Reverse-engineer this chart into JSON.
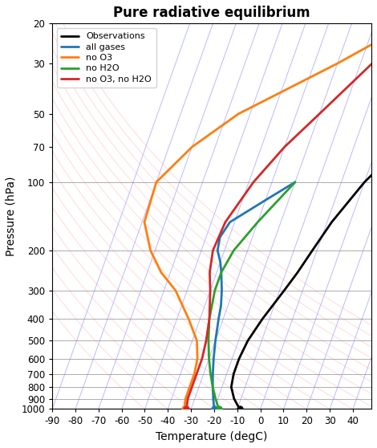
{
  "title": "Pure radiative equilibrium",
  "xlabel": "Temperature (degC)",
  "ylabel": "Pressure (hPa)",
  "xlim": [
    -90,
    48
  ],
  "ylim_pressure": [
    1000,
    20
  ],
  "skew_factor": 35,
  "background_color": "#ffffff",
  "curves": {
    "observations": {
      "color": "#000000",
      "lw": 2.0,
      "label": "Observations",
      "pressure": [
        20,
        30,
        50,
        70,
        100,
        150,
        200,
        250,
        300,
        400,
        500,
        600,
        700,
        800,
        900,
        1000
      ],
      "temperature": [
        42,
        38,
        30,
        20,
        10,
        2,
        -2,
        -5,
        -8,
        -13,
        -16,
        -17,
        -17,
        -16,
        -13,
        -9
      ]
    },
    "all_gases": {
      "color": "#1f77b4",
      "lw": 2.0,
      "label": "all gases",
      "pressure": [
        100,
        120,
        150,
        175,
        200,
        225,
        250,
        300,
        350,
        400,
        500,
        600,
        700,
        800,
        900,
        1000
      ],
      "temperature": [
        -20,
        -30,
        -42,
        -44,
        -43,
        -40,
        -38,
        -35,
        -33,
        -32,
        -30,
        -28,
        -26,
        -24,
        -22,
        -20
      ]
    },
    "no_O3": {
      "color": "#ff7f0e",
      "lw": 2.0,
      "label": "no O3",
      "pressure": [
        20,
        30,
        50,
        70,
        100,
        150,
        200,
        250,
        300,
        400,
        500,
        600,
        700,
        800,
        900,
        1000
      ],
      "temperature": [
        5,
        -20,
        -55,
        -70,
        -80,
        -79,
        -72,
        -64,
        -55,
        -45,
        -38,
        -35,
        -34,
        -34,
        -34,
        -33
      ]
    },
    "no_H2O": {
      "color": "#2ca02c",
      "lw": 2.0,
      "label": "no H2O",
      "pressure": [
        100,
        150,
        200,
        250,
        300,
        400,
        500,
        600,
        700,
        800,
        900,
        1000
      ],
      "temperature": [
        -20,
        -30,
        -36,
        -38,
        -38,
        -36,
        -33,
        -30,
        -27,
        -24,
        -21,
        -18
      ]
    },
    "no_O3_no_H2O": {
      "color": "#d62728",
      "lw": 2.0,
      "label": "no O3, no H2O",
      "pressure": [
        20,
        30,
        50,
        70,
        100,
        150,
        200,
        250,
        300,
        400,
        500,
        600,
        700,
        800,
        900,
        1000
      ],
      "temperature": [
        5,
        -5,
        -20,
        -30,
        -38,
        -44,
        -45,
        -43,
        -40,
        -36,
        -34,
        -33,
        -33,
        -33,
        -33,
        -32
      ]
    }
  },
  "isotherms": {
    "temps": [
      -90,
      -80,
      -70,
      -60,
      -50,
      -40,
      -30,
      -20,
      -10,
      0,
      10,
      20,
      30,
      40,
      50,
      60
    ],
    "color_blue": "#6666ff",
    "alpha_blue": 0.45,
    "lw": 0.7
  },
  "dry_adiabats": {
    "T_refs_C": [
      -50,
      -40,
      -30,
      -20,
      -10,
      0,
      10,
      20,
      30,
      40,
      50,
      60,
      70,
      80,
      90,
      100,
      110,
      120
    ],
    "color": "#ff9999",
    "alpha": 0.35,
    "lw": 0.7
  },
  "pressure_gridlines": [
    100,
    200,
    300,
    400,
    500,
    600,
    700,
    800,
    900,
    1000
  ],
  "ytick_pressures": [
    20,
    30,
    50,
    70,
    100,
    200,
    300,
    400,
    500,
    600,
    700,
    800,
    900,
    1000
  ],
  "xticks": [
    -90,
    -80,
    -70,
    -60,
    -50,
    -40,
    -30,
    -20,
    -10,
    0,
    10,
    20,
    30,
    40
  ],
  "surface_dots": {
    "observations": {
      "T": -9,
      "P": 1000,
      "color": "#000000"
    },
    "all_gases": {
      "T": -20,
      "P": 1000,
      "color": "#1f77b4"
    },
    "no_O3": {
      "T": -33,
      "P": 1000,
      "color": "#ff7f0e"
    },
    "no_H2O": {
      "T": -18,
      "P": 1000,
      "color": "#2ca02c"
    },
    "no_O3_no_H2O": {
      "T": -32,
      "P": 1000,
      "color": "#d62728"
    }
  }
}
